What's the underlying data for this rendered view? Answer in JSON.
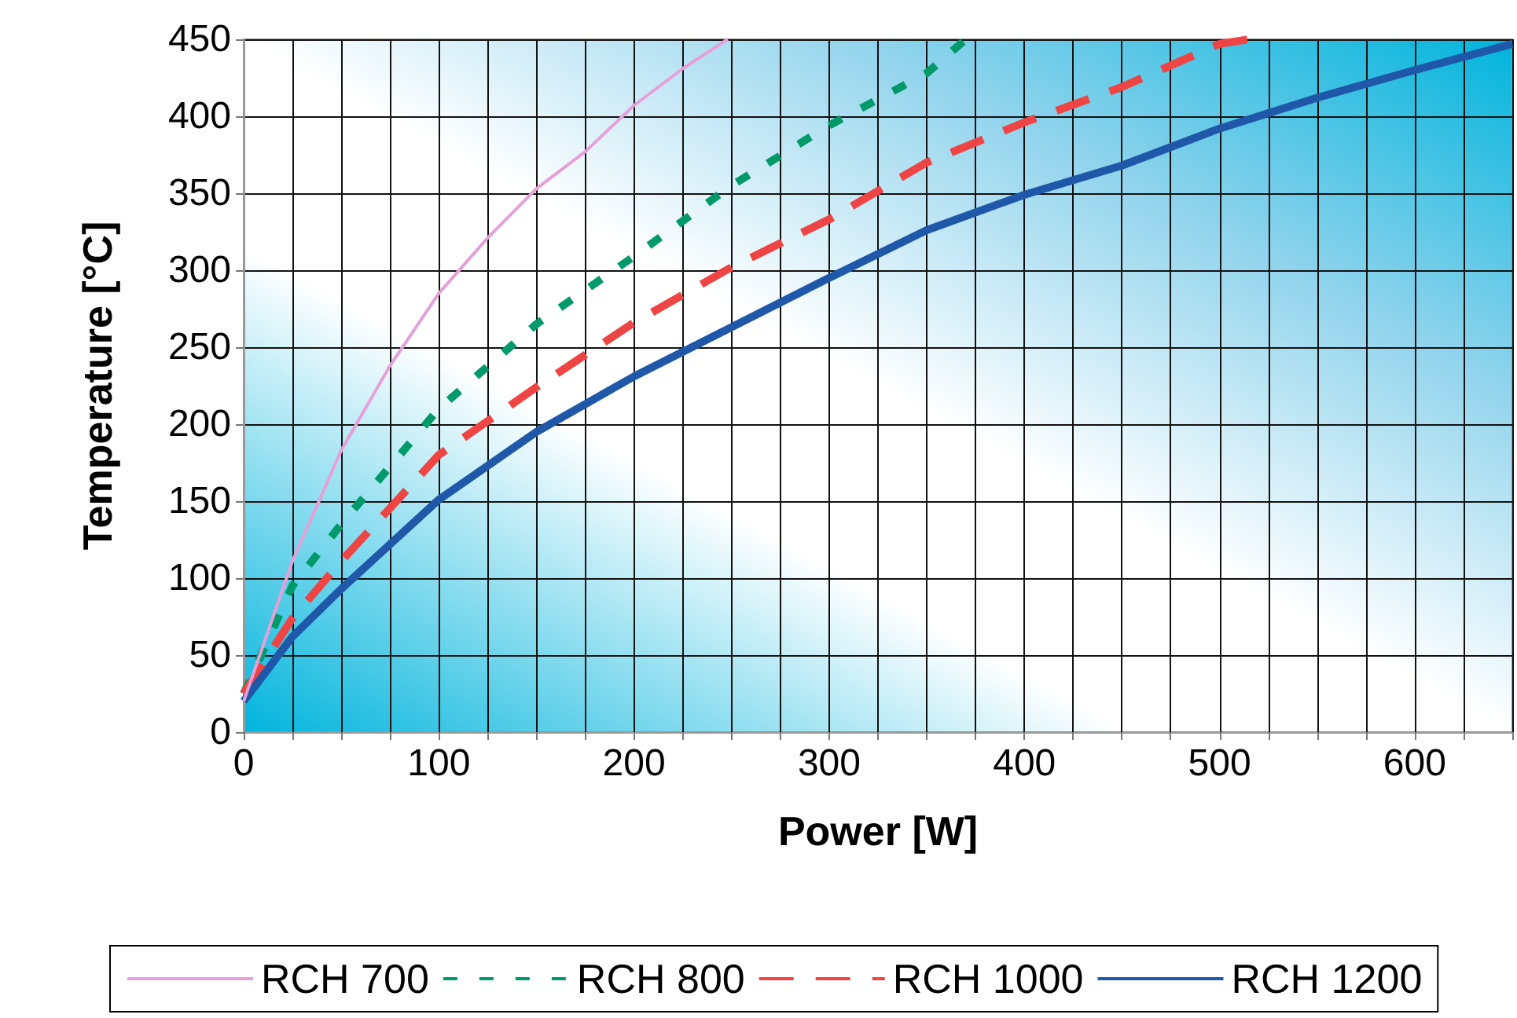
{
  "chart_data": {
    "type": "line",
    "xlabel": "Power [W]",
    "ylabel": "Temperature [°C]",
    "xlim": [
      0,
      650
    ],
    "ylim": [
      0,
      450
    ],
    "xticks": [
      0,
      {
        "value": 25,
        "label": null
      },
      {
        "value": 50,
        "label": null
      },
      {
        "value": 75,
        "label": null
      },
      100,
      {
        "value": 125,
        "label": null
      },
      {
        "value": 150,
        "label": null
      },
      {
        "value": 175,
        "label": null
      },
      200,
      {
        "value": 225,
        "label": null
      },
      {
        "value": 250,
        "label": null
      },
      {
        "value": 275,
        "label": null
      },
      300,
      {
        "value": 325,
        "label": null
      },
      {
        "value": 350,
        "label": null
      },
      {
        "value": 375,
        "label": null
      },
      400,
      {
        "value": 425,
        "label": null
      },
      {
        "value": 450,
        "label": null
      },
      {
        "value": 475,
        "label": null
      },
      500,
      {
        "value": 525,
        "label": null
      },
      {
        "value": 550,
        "label": null
      },
      {
        "value": 575,
        "label": null
      },
      600,
      {
        "value": 625,
        "label": null
      },
      {
        "value": 650,
        "label": null
      }
    ],
    "yticks": [
      0,
      50,
      100,
      150,
      200,
      250,
      300,
      350,
      400,
      450
    ],
    "grid": true,
    "legend": "bottom",
    "marker": "none",
    "series": [
      {
        "name": "RCH 700",
        "color": "#e6a0d8",
        "line_style": "solid",
        "x": [
          0,
          25,
          50,
          75,
          100,
          125,
          150,
          175,
          200,
          225,
          248
        ],
        "values": [
          20,
          111,
          183,
          238,
          285,
          321,
          353,
          377,
          407,
          431,
          450
        ]
      },
      {
        "name": "RCH 800",
        "color": "#00996a",
        "line_style": "dotted",
        "x": [
          0,
          25,
          50,
          100,
          150,
          200,
          250,
          300,
          350,
          370
        ],
        "values": [
          25,
          95,
          135,
          210,
          265,
          309,
          355,
          394,
          428,
          450
        ]
      },
      {
        "name": "RCH 1000",
        "color": "#ee4444",
        "line_style": "dashed",
        "x": [
          0,
          25,
          50,
          100,
          150,
          200,
          250,
          300,
          350,
          400,
          450,
          500,
          515
        ],
        "values": [
          25,
          74,
          111,
          180,
          224,
          266,
          302,
          333,
          370,
          396,
          419,
          447,
          450
        ]
      },
      {
        "name": "RCH 1200",
        "color": "#1f58a8",
        "line_style": "solid",
        "x": [
          0,
          25,
          50,
          100,
          150,
          200,
          250,
          300,
          350,
          400,
          450,
          500,
          550,
          600,
          650
        ],
        "values": [
          20,
          62,
          93,
          151,
          195,
          231,
          263,
          295,
          326,
          349,
          368,
          392,
          412,
          430,
          447
        ]
      }
    ]
  }
}
